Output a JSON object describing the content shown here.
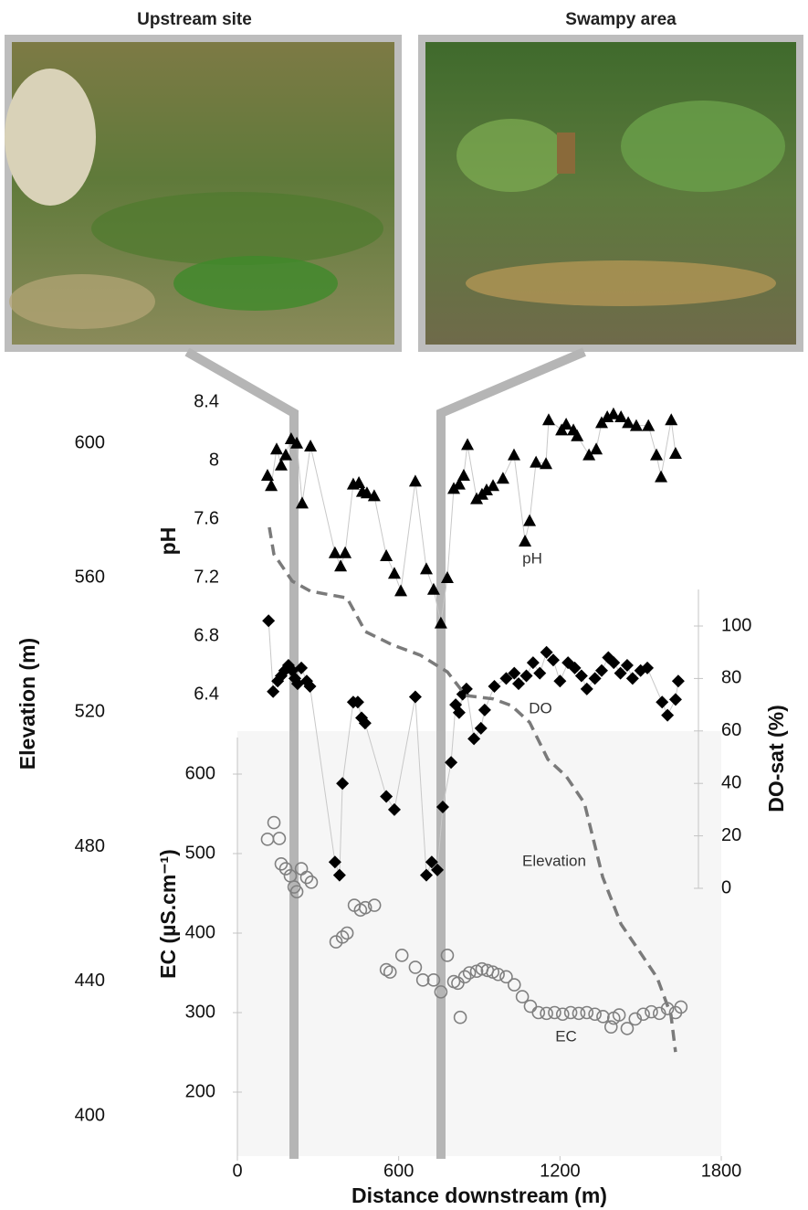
{
  "photos": {
    "left_label": "Upstream site",
    "right_label": "Swampy area"
  },
  "chart_data": {
    "type": "scatter",
    "x_label": "Distance downstream (m)",
    "xlim": [
      0,
      1800
    ],
    "xticks": [
      0,
      600,
      1200,
      1800
    ],
    "axes": [
      {
        "label": "Elevation (m)",
        "ylim": [
          400,
          600
        ],
        "yticks": [
          400,
          440,
          480,
          520,
          560,
          600
        ]
      },
      {
        "label": "pH",
        "ylim": [
          6.4,
          8.4
        ],
        "yticks": [
          6.4,
          6.8,
          7.2,
          7.6,
          {
            "value": 8,
            "label": "8"
          },
          8.4
        ]
      },
      {
        "label": "DO-sat (%)",
        "ylim": [
          0,
          100
        ],
        "yticks": [
          0,
          20,
          40,
          60,
          80,
          100
        ]
      },
      {
        "label": "EC (µS.cm⁻¹)",
        "ylim": [
          200,
          600
        ],
        "yticks": [
          200,
          300,
          400,
          500,
          600
        ]
      }
    ],
    "series": [
      {
        "name": "pH",
        "axis": 1,
        "marker": "triangle",
        "color": "#000000",
        "line_color": "#c8c8c8",
        "x": [
          112,
          126,
          146,
          163,
          180,
          200,
          221,
          241,
          272,
          363,
          384,
          401,
          431,
          452,
          465,
          482,
          509,
          554,
          584,
          608,
          662,
          703,
          730,
          757,
          781,
          805,
          825,
          842,
          856,
          890,
          910,
          927,
          951,
          988,
          1029,
          1070,
          1087,
          1111,
          1148,
          1158,
          1206,
          1223,
          1250,
          1264,
          1308,
          1335,
          1355,
          1376,
          1399,
          1427,
          1454,
          1484,
          1529,
          1559,
          1576,
          1614,
          1630
        ],
        "values": [
          7.9,
          7.83,
          8.08,
          7.97,
          8.04,
          8.15,
          8.12,
          7.71,
          8.1,
          7.37,
          7.28,
          7.37,
          7.84,
          7.85,
          7.79,
          7.78,
          7.76,
          7.35,
          7.23,
          7.11,
          7.86,
          7.26,
          7.12,
          6.89,
          7.2,
          7.81,
          7.84,
          7.9,
          8.11,
          7.74,
          7.77,
          7.8,
          7.83,
          7.88,
          8.04,
          7.45,
          7.59,
          7.99,
          7.98,
          8.28,
          8.21,
          8.25,
          8.21,
          8.17,
          8.04,
          8.08,
          8.26,
          8.3,
          8.32,
          8.3,
          8.26,
          8.24,
          8.24,
          8.04,
          7.89,
          8.28,
          8.05
        ]
      },
      {
        "name": "DO",
        "axis": 2,
        "marker": "diamond",
        "color": "#000000",
        "line_color": "#c8c8c8",
        "x": [
          116,
          133,
          150,
          163,
          176,
          190,
          204,
          214,
          224,
          238,
          258,
          270,
          363,
          380,
          391,
          431,
          448,
          462,
          475,
          554,
          584,
          662,
          703,
          723,
          744,
          764,
          795,
          812,
          825,
          838,
          852,
          880,
          906,
          920,
          956,
          1000,
          1030,
          1046,
          1075,
          1100,
          1125,
          1150,
          1175,
          1200,
          1230,
          1255,
          1280,
          1300,
          1330,
          1355,
          1380,
          1400,
          1425,
          1450,
          1470,
          1500,
          1525,
          1580,
          1600,
          1630,
          1640
        ],
        "values": [
          102,
          75,
          79,
          81,
          83,
          85,
          83,
          80,
          78,
          84,
          79,
          77,
          10,
          5,
          40,
          71,
          71,
          65,
          63,
          35,
          30,
          73,
          5,
          10,
          7,
          31,
          48,
          70,
          67,
          74,
          76,
          57,
          61,
          68,
          77,
          80,
          82,
          78,
          81,
          86,
          82,
          90,
          87,
          79,
          86,
          84,
          81,
          76,
          80,
          83,
          88,
          86,
          82,
          85,
          80,
          83,
          84,
          71,
          66,
          72,
          79
        ]
      },
      {
        "name": "Elevation",
        "axis": 0,
        "marker": "dashed-line",
        "color": "#7a7a7a",
        "x": [
          119,
          136,
          204,
          272,
          408,
          476,
          578,
          680,
          781,
          849,
          951,
          1019,
          1087,
          1155,
          1223,
          1291,
          1359,
          1427,
          1495,
          1562,
          1613,
          1630
        ],
        "values": [
          575,
          567,
          559,
          556,
          554,
          544,
          540,
          537,
          532,
          525,
          524,
          522,
          517,
          506,
          501,
          493,
          471,
          457,
          449,
          441,
          430,
          419
        ]
      },
      {
        "name": "EC",
        "axis": 3,
        "marker": "open-circle",
        "color": "#808080",
        "x": [
          112,
          136,
          156,
          163,
          180,
          197,
          211,
          221,
          238,
          258,
          275,
          367,
          391,
          408,
          435,
          458,
          476,
          510,
          554,
          568,
          612,
          662,
          690,
          730,
          757,
          781,
          805,
          820,
          829,
          846,
          863,
          890,
          910,
          930,
          950,
          970,
          1000,
          1030,
          1060,
          1090,
          1120,
          1150,
          1180,
          1210,
          1240,
          1270,
          1300,
          1330,
          1360,
          1390,
          1400,
          1420,
          1450,
          1480,
          1510,
          1540,
          1570,
          1600,
          1630,
          1650
        ],
        "values": [
          518,
          539,
          519,
          487,
          481,
          472,
          458,
          452,
          481,
          470,
          464,
          389,
          395,
          400,
          435,
          429,
          432,
          435,
          354,
          351,
          372,
          357,
          341,
          341,
          326,
          372,
          339,
          337,
          294,
          345,
          350,
          352,
          355,
          353,
          351,
          348,
          345,
          335,
          320,
          308,
          300,
          299,
          300,
          298,
          300,
          299,
          300,
          298,
          295,
          282,
          293,
          297,
          280,
          292,
          298,
          301,
          299,
          305,
          300,
          307
        ]
      }
    ]
  }
}
